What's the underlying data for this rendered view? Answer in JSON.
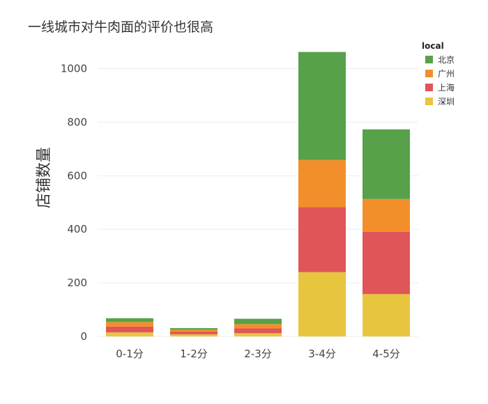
{
  "chart_data": {
    "type": "bar",
    "stacked": true,
    "title": "一线城市对牛肉面的评价也很高",
    "xlabel": "",
    "ylabel": "店铺数量",
    "categories": [
      "0-1分",
      "1-2分",
      "2-3分",
      "3-4分",
      "4-5分"
    ],
    "ylim": [
      0,
      1100
    ],
    "yticks": [
      0,
      200,
      400,
      600,
      800,
      1000
    ],
    "grid": true,
    "legend": {
      "title": "local",
      "position": "top-right"
    },
    "series": [
      {
        "name": "深圳",
        "color": "#e8c53f",
        "values": [
          15,
          8,
          12,
          240,
          158
        ]
      },
      {
        "name": "上海",
        "color": "#e05558",
        "values": [
          22,
          10,
          18,
          243,
          233
        ]
      },
      {
        "name": "广州",
        "color": "#f28f2b",
        "values": [
          17,
          7,
          16,
          176,
          122
        ]
      },
      {
        "name": "北京",
        "color": "#57a14a",
        "values": [
          14,
          6,
          20,
          403,
          260
        ]
      }
    ]
  }
}
